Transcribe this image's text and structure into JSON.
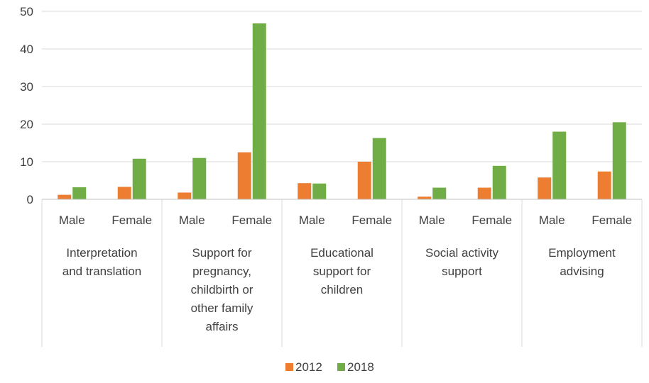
{
  "chart_data": {
    "type": "bar",
    "title": "",
    "xlabel": "",
    "ylabel": "",
    "ylim": [
      0,
      50
    ],
    "yticks": [
      0,
      10,
      20,
      30,
      40,
      50
    ],
    "grid": "horizontal",
    "legend_position": "bottom",
    "groups": [
      {
        "label": "Interpretation and translation",
        "label_lines": [
          "Interpretation",
          "and translation"
        ]
      },
      {
        "label": "Support for pregnancy, childbirth or other family affairs",
        "label_lines": [
          "Support for",
          "pregnancy,",
          "childbirth or",
          "other family",
          "affairs"
        ]
      },
      {
        "label": "Educational support for children",
        "label_lines": [
          "Educational",
          "support for",
          "children"
        ]
      },
      {
        "label": "Social activity support",
        "label_lines": [
          "Social activity",
          "support"
        ]
      },
      {
        "label": "Employment advising",
        "label_lines": [
          "Employment",
          "advising"
        ]
      }
    ],
    "subcategories": [
      "Male",
      "Female"
    ],
    "categories": [
      "Interpretation and translation - Male",
      "Interpretation and translation - Female",
      "Support for pregnancy, childbirth or other family affairs - Male",
      "Support for pregnancy, childbirth or other family affairs - Female",
      "Educational support for children - Male",
      "Educational support for children - Female",
      "Social activity support - Male",
      "Social activity support - Female",
      "Employment advising - Male",
      "Employment advising - Female"
    ],
    "series": [
      {
        "name": "2012",
        "color": "#ED7D31",
        "values": [
          1.2,
          3.3,
          1.8,
          12.5,
          4.3,
          10.0,
          0.7,
          3.1,
          5.8,
          7.4
        ]
      },
      {
        "name": "2018",
        "color": "#70AD47",
        "values": [
          3.2,
          10.8,
          11.0,
          46.8,
          4.2,
          16.3,
          3.1,
          8.9,
          18.0,
          20.5
        ]
      }
    ]
  }
}
